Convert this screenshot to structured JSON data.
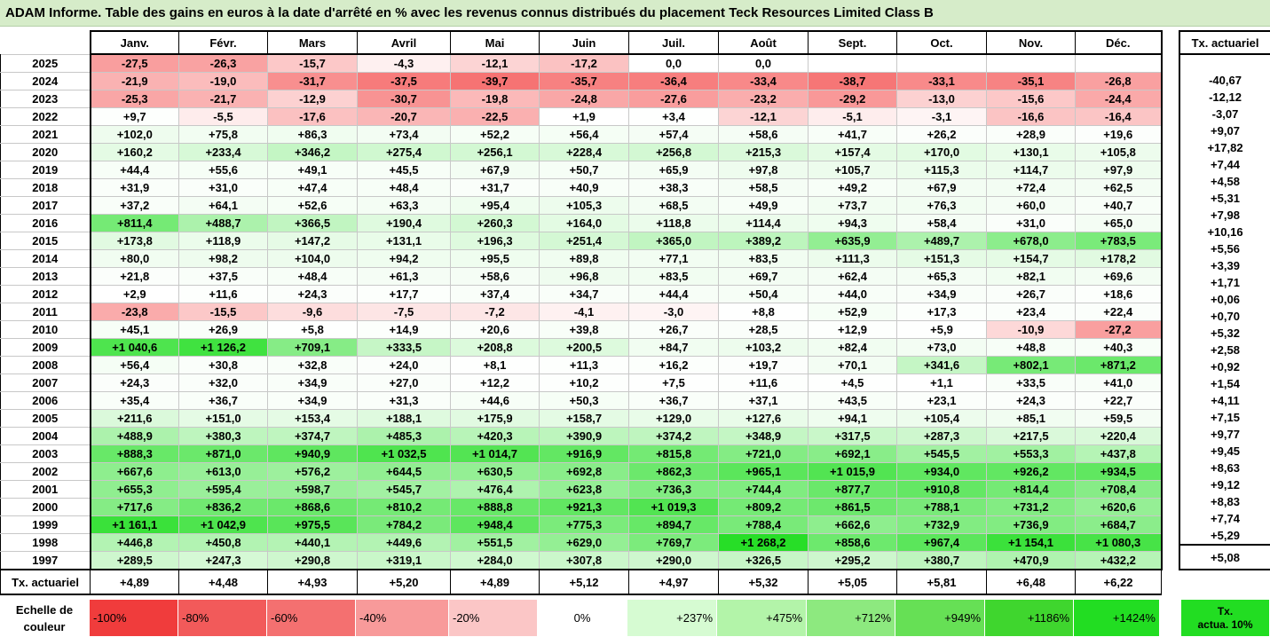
{
  "title": "ADAM Informe. Table des gains en euros à la date d'arrêté en % avec les revenus connus distribués du placement Teck Resources Limited Class B",
  "months": [
    "Janv.",
    "Févr.",
    "Mars",
    "Avril",
    "Mai",
    "Juin",
    "Juil.",
    "Août",
    "Sept.",
    "Oct.",
    "Nov.",
    "Déc."
  ],
  "rate_header": "Tx. actuariel",
  "rows": [
    {
      "year": "2025",
      "values": [
        "-27,5",
        "-26,3",
        "-15,7",
        "-4,3",
        "-12,1",
        "-17,2",
        "0,0",
        "0,0",
        "",
        "",
        "",
        ""
      ],
      "rate": ""
    },
    {
      "year": "2024",
      "values": [
        "-21,9",
        "-19,0",
        "-31,7",
        "-37,5",
        "-39,7",
        "-35,7",
        "-36,4",
        "-33,4",
        "-38,7",
        "-33,1",
        "-35,1",
        "-26,8"
      ],
      "rate": "-40,67"
    },
    {
      "year": "2023",
      "values": [
        "-25,3",
        "-21,7",
        "-12,9",
        "-30,7",
        "-19,8",
        "-24,8",
        "-27,6",
        "-23,2",
        "-29,2",
        "-13,0",
        "-15,6",
        "-24,4"
      ],
      "rate": "-12,12"
    },
    {
      "year": "2022",
      "values": [
        "+9,7",
        "-5,5",
        "-17,6",
        "-20,7",
        "-22,5",
        "+1,9",
        "+3,4",
        "-12,1",
        "-5,1",
        "-3,1",
        "-16,6",
        "-16,4"
      ],
      "rate": "-3,07"
    },
    {
      "year": "2021",
      "values": [
        "+102,0",
        "+75,8",
        "+86,3",
        "+73,4",
        "+52,2",
        "+56,4",
        "+57,4",
        "+58,6",
        "+41,7",
        "+26,2",
        "+28,9",
        "+19,6"
      ],
      "rate": "+9,07"
    },
    {
      "year": "2020",
      "values": [
        "+160,2",
        "+233,4",
        "+346,2",
        "+275,4",
        "+256,1",
        "+228,4",
        "+256,8",
        "+215,3",
        "+157,4",
        "+170,0",
        "+130,1",
        "+105,8"
      ],
      "rate": "+17,82"
    },
    {
      "year": "2019",
      "values": [
        "+44,4",
        "+55,6",
        "+49,1",
        "+45,5",
        "+67,9",
        "+50,7",
        "+65,9",
        "+97,8",
        "+105,7",
        "+115,3",
        "+114,7",
        "+97,9"
      ],
      "rate": "+7,44"
    },
    {
      "year": "2018",
      "values": [
        "+31,9",
        "+31,0",
        "+47,4",
        "+48,4",
        "+31,7",
        "+40,9",
        "+38,3",
        "+58,5",
        "+49,2",
        "+67,9",
        "+72,4",
        "+62,5"
      ],
      "rate": "+4,58"
    },
    {
      "year": "2017",
      "values": [
        "+37,2",
        "+64,1",
        "+52,6",
        "+63,3",
        "+95,4",
        "+105,3",
        "+68,5",
        "+49,9",
        "+73,7",
        "+76,3",
        "+60,0",
        "+40,7"
      ],
      "rate": "+5,31"
    },
    {
      "year": "2016",
      "values": [
        "+811,4",
        "+488,7",
        "+366,5",
        "+190,4",
        "+260,3",
        "+164,0",
        "+118,8",
        "+114,4",
        "+94,3",
        "+58,4",
        "+31,0",
        "+65,0"
      ],
      "rate": "+7,98"
    },
    {
      "year": "2015",
      "values": [
        "+173,8",
        "+118,9",
        "+147,2",
        "+131,1",
        "+196,3",
        "+251,4",
        "+365,0",
        "+389,2",
        "+635,9",
        "+489,7",
        "+678,0",
        "+783,5"
      ],
      "rate": "+10,16"
    },
    {
      "year": "2014",
      "values": [
        "+80,0",
        "+98,2",
        "+104,0",
        "+94,2",
        "+95,5",
        "+89,8",
        "+77,1",
        "+83,5",
        "+111,3",
        "+151,3",
        "+154,7",
        "+178,2"
      ],
      "rate": "+5,56"
    },
    {
      "year": "2013",
      "values": [
        "+21,8",
        "+37,5",
        "+48,4",
        "+61,3",
        "+58,6",
        "+96,8",
        "+83,5",
        "+69,7",
        "+62,4",
        "+65,3",
        "+82,1",
        "+69,6"
      ],
      "rate": "+3,39"
    },
    {
      "year": "2012",
      "values": [
        "+2,9",
        "+11,6",
        "+24,3",
        "+17,7",
        "+37,4",
        "+34,7",
        "+44,4",
        "+50,4",
        "+44,0",
        "+34,9",
        "+26,7",
        "+18,6"
      ],
      "rate": "+1,71"
    },
    {
      "year": "2011",
      "values": [
        "-23,8",
        "-15,5",
        "-9,6",
        "-7,5",
        "-7,2",
        "-4,1",
        "-3,0",
        "+8,8",
        "+52,9",
        "+17,3",
        "+23,4",
        "+22,4"
      ],
      "rate": "+0,06"
    },
    {
      "year": "2010",
      "values": [
        "+45,1",
        "+26,9",
        "+5,8",
        "+14,9",
        "+20,6",
        "+39,8",
        "+26,7",
        "+28,5",
        "+12,9",
        "+5,9",
        "-10,9",
        "-27,2"
      ],
      "rate": "+0,70"
    },
    {
      "year": "2009",
      "values": [
        "+1 040,6",
        "+1 126,2",
        "+709,1",
        "+333,5",
        "+208,8",
        "+200,5",
        "+84,7",
        "+103,2",
        "+82,4",
        "+73,0",
        "+48,8",
        "+40,3"
      ],
      "rate": "+5,32"
    },
    {
      "year": "2008",
      "values": [
        "+56,4",
        "+30,8",
        "+32,8",
        "+24,0",
        "+8,1",
        "+11,3",
        "+16,2",
        "+19,7",
        "+70,1",
        "+341,6",
        "+802,1",
        "+871,2"
      ],
      "rate": "+2,58"
    },
    {
      "year": "2007",
      "values": [
        "+24,3",
        "+32,0",
        "+34,9",
        "+27,0",
        "+12,2",
        "+10,2",
        "+7,5",
        "+11,6",
        "+4,5",
        "+1,1",
        "+33,5",
        "+41,0"
      ],
      "rate": "+0,92"
    },
    {
      "year": "2006",
      "values": [
        "+35,4",
        "+36,7",
        "+34,9",
        "+31,3",
        "+44,6",
        "+50,3",
        "+36,7",
        "+37,1",
        "+43,5",
        "+23,1",
        "+24,3",
        "+22,7"
      ],
      "rate": "+1,54"
    },
    {
      "year": "2005",
      "values": [
        "+211,6",
        "+151,0",
        "+153,4",
        "+188,1",
        "+175,9",
        "+158,7",
        "+129,0",
        "+127,6",
        "+94,1",
        "+105,4",
        "+85,1",
        "+59,5"
      ],
      "rate": "+4,11"
    },
    {
      "year": "2004",
      "values": [
        "+488,9",
        "+380,3",
        "+374,7",
        "+485,3",
        "+420,3",
        "+390,9",
        "+374,2",
        "+348,9",
        "+317,5",
        "+287,3",
        "+217,5",
        "+220,4"
      ],
      "rate": "+7,15"
    },
    {
      "year": "2003",
      "values": [
        "+888,3",
        "+871,0",
        "+940,9",
        "+1 032,5",
        "+1 014,7",
        "+916,9",
        "+815,8",
        "+721,0",
        "+692,1",
        "+545,5",
        "+553,3",
        "+437,8"
      ],
      "rate": "+9,77"
    },
    {
      "year": "2002",
      "values": [
        "+667,6",
        "+613,0",
        "+576,2",
        "+644,5",
        "+630,5",
        "+692,8",
        "+862,3",
        "+965,1",
        "+1 015,9",
        "+934,0",
        "+926,2",
        "+934,5"
      ],
      "rate": "+9,45"
    },
    {
      "year": "2001",
      "values": [
        "+655,3",
        "+595,4",
        "+598,7",
        "+545,7",
        "+476,4",
        "+623,8",
        "+736,3",
        "+744,4",
        "+877,7",
        "+910,8",
        "+814,4",
        "+708,4"
      ],
      "rate": "+8,63"
    },
    {
      "year": "2000",
      "values": [
        "+717,6",
        "+836,2",
        "+868,6",
        "+810,2",
        "+888,8",
        "+921,3",
        "+1 019,3",
        "+809,2",
        "+861,5",
        "+788,1",
        "+731,2",
        "+620,6"
      ],
      "rate": "+9,12"
    },
    {
      "year": "1999",
      "values": [
        "+1 161,1",
        "+1 042,9",
        "+975,5",
        "+784,2",
        "+948,4",
        "+775,3",
        "+894,7",
        "+788,4",
        "+662,6",
        "+732,9",
        "+736,9",
        "+684,7"
      ],
      "rate": "+8,83"
    },
    {
      "year": "1998",
      "values": [
        "+446,8",
        "+450,8",
        "+440,1",
        "+449,6",
        "+551,5",
        "+629,0",
        "+769,7",
        "+1 268,2",
        "+858,6",
        "+967,4",
        "+1 154,1",
        "+1 080,3"
      ],
      "rate": "+7,74"
    },
    {
      "year": "1997",
      "values": [
        "+289,5",
        "+247,3",
        "+290,8",
        "+319,1",
        "+284,0",
        "+307,8",
        "+290,0",
        "+326,5",
        "+295,2",
        "+380,7",
        "+470,9",
        "+432,2"
      ],
      "rate": "+5,29"
    }
  ],
  "footer": {
    "label": "Tx. actuariel",
    "values": [
      "+4,89",
      "+4,48",
      "+4,93",
      "+5,20",
      "+4,89",
      "+5,12",
      "+4,97",
      "+5,32",
      "+5,05",
      "+5,81",
      "+6,48",
      "+6,22"
    ],
    "rate": "+5,08"
  },
  "legend": {
    "label_line1": "Echelle de",
    "label_line2": "couleur",
    "items": [
      {
        "text": "-100%",
        "color": "#f03c3c"
      },
      {
        "text": "-80%",
        "color": "#f25a5a"
      },
      {
        "text": "-60%",
        "color": "#f47070"
      },
      {
        "text": "-40%",
        "color": "#f89a9a"
      },
      {
        "text": "-20%",
        "color": "#fbc6c6"
      },
      {
        "text": "0%",
        "color": "#ffffff"
      },
      {
        "text": "+237%",
        "color": "#d6fbd2"
      },
      {
        "text": "+475%",
        "color": "#b3f4a9"
      },
      {
        "text": "+712%",
        "color": "#8de97f"
      },
      {
        "text": "+949%",
        "color": "#66e055"
      },
      {
        "text": "+1186%",
        "color": "#3fd62e"
      },
      {
        "text": "+1424%",
        "color": "#22dd22"
      }
    ],
    "right_line1": "Tx.",
    "right_line2": "actua. 10%"
  }
}
